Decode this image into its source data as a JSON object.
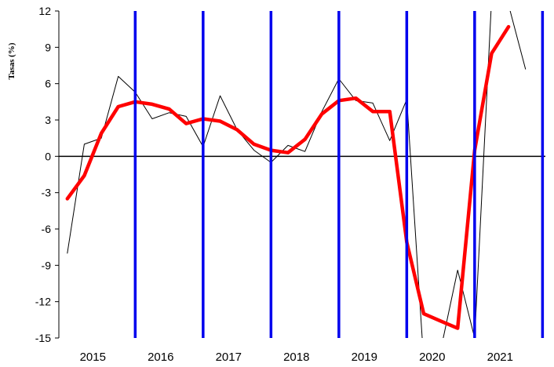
{
  "chart_data": {
    "type": "line",
    "title": "",
    "xlabel": "",
    "ylabel": "Tasas (%)",
    "ylim": [
      -15,
      12
    ],
    "y_ticks": [
      "12",
      "9",
      "6",
      "3",
      "0",
      "-3",
      "-6",
      "-9",
      "-12",
      "-15"
    ],
    "x_ticks": [
      "2015",
      "2016",
      "2017",
      "2018",
      "2019",
      "2020",
      "2021"
    ],
    "x_tick_values": [
      2015.125,
      2016.125,
      2017.125,
      2018.125,
      2019.125,
      2020.125,
      2021.125
    ],
    "xlim": [
      2014.625,
      2021.792
    ],
    "grid": false,
    "legend": "none",
    "zero_line": true,
    "vertical_markers": [
      2015.75,
      2016.75,
      2017.75,
      2018.75,
      2019.75,
      2020.75,
      2021.75
    ],
    "series": [
      {
        "color": "#000000",
        "style": "thin",
        "x": [
          2014.75,
          2015.0,
          2015.25,
          2015.5,
          2015.75,
          2016.0,
          2016.25,
          2016.5,
          2016.75,
          2017.0,
          2017.25,
          2017.5,
          2017.75,
          2018.0,
          2018.25,
          2018.5,
          2018.75,
          2019.0,
          2019.25,
          2019.5,
          2019.75,
          2020.0,
          2020.25,
          2020.5,
          2020.75,
          2021.0,
          2021.25,
          2021.5
        ],
        "values": [
          -8.0,
          1.0,
          1.5,
          6.6,
          5.3,
          3.1,
          3.6,
          3.3,
          0.8,
          5.0,
          2.2,
          0.5,
          -0.5,
          0.9,
          0.4,
          3.7,
          6.4,
          4.6,
          4.4,
          1.3,
          4.7,
          -17.0,
          -16.0,
          -9.4,
          -15.0,
          13.0,
          12.5,
          7.2
        ]
      },
      {
        "color": "#ff0000",
        "style": "thick",
        "x": [
          2014.75,
          2015.0,
          2015.25,
          2015.5,
          2015.75,
          2016.0,
          2016.25,
          2016.5,
          2016.75,
          2017.0,
          2017.25,
          2017.5,
          2017.75,
          2018.0,
          2018.25,
          2018.5,
          2018.75,
          2019.0,
          2019.25,
          2019.5,
          2019.75,
          2020.0,
          2020.25,
          2020.5,
          2020.75,
          2021.0,
          2021.25,
          2021.5
        ],
        "values": [
          -3.5,
          -1.6,
          1.9,
          4.1,
          4.5,
          4.3,
          3.9,
          2.7,
          3.1,
          2.9,
          2.2,
          1.0,
          0.5,
          0.3,
          1.4,
          3.5,
          4.6,
          4.8,
          3.7,
          3.7,
          -7.1,
          -13.0,
          -13.6,
          -14.2,
          0.5,
          8.5,
          10.7,
          null
        ]
      }
    ],
    "colors": {
      "thin_line": "#000000",
      "smoothed_line": "#ff0000",
      "vertical_markers": "#0000ee",
      "axes": "#000000"
    }
  }
}
